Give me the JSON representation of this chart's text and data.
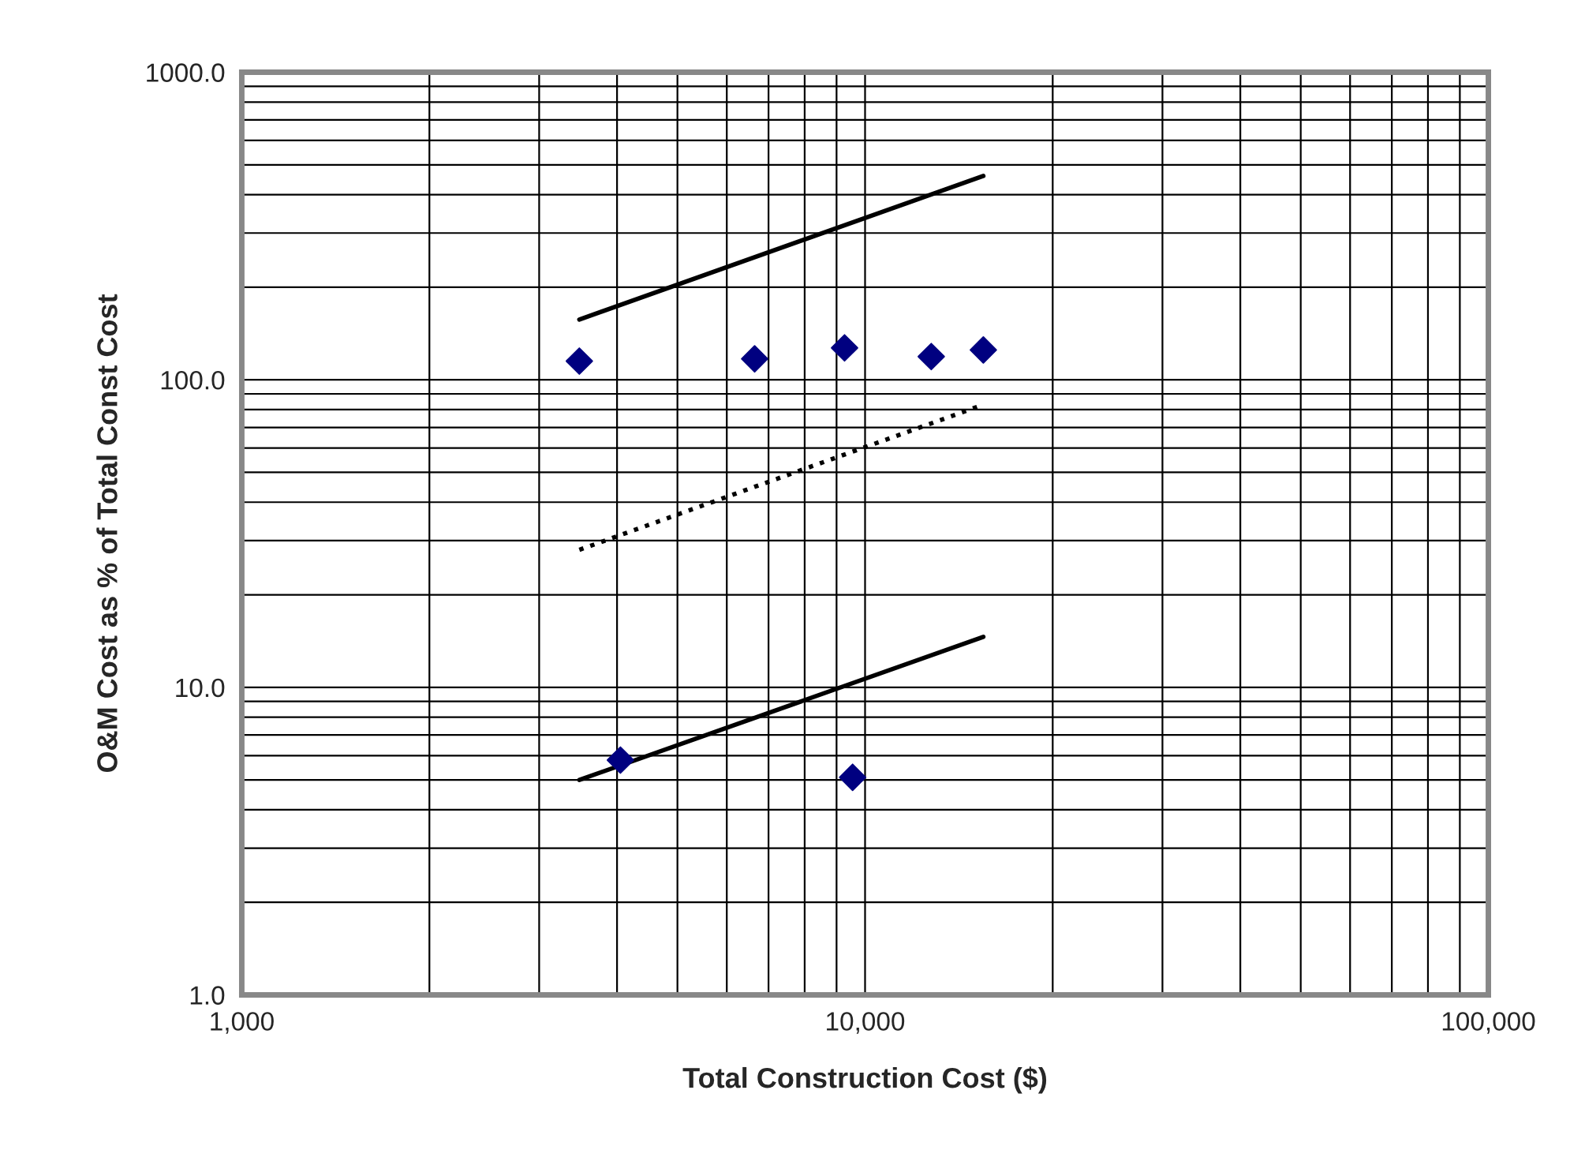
{
  "chart_data": {
    "type": "scatter",
    "xlabel": "Total Construction Cost ($)",
    "ylabel": "O&M Cost as % of Total Const Cost",
    "log": "xy",
    "grid": true,
    "legend": false,
    "xlim": [
      1000,
      100000
    ],
    "xticks": [
      {
        "value": 1000,
        "label": "1,000"
      },
      {
        "value": 10000,
        "label": "10,000"
      },
      {
        "value": 100000,
        "label": "100,000"
      }
    ],
    "ylim": [
      1,
      1000
    ],
    "yticks": [
      {
        "value": 1,
        "label": "1.0"
      },
      {
        "value": 10,
        "label": "10.0"
      },
      {
        "value": 100,
        "label": "100.0"
      },
      {
        "value": 1000,
        "label": "1000.0"
      }
    ],
    "series": [
      {
        "color": "#000080",
        "marker": "diamond",
        "x": [
          3480,
          4050,
          6650,
          9270,
          9550,
          12770,
          15480
        ],
        "values": [
          115,
          5.8,
          117,
          127,
          5.1,
          119,
          125
        ]
      },
      {
        "type": "line",
        "color": "#000000",
        "line_style": "solid",
        "x": [
          3480,
          15480
        ],
        "values": [
          157,
          460
        ]
      },
      {
        "type": "line",
        "color": "#000000",
        "line_style": "dotted",
        "x": [
          3480,
          15480
        ],
        "values": [
          28,
          83
        ]
      },
      {
        "type": "line",
        "color": "#000000",
        "line_style": "solid",
        "x": [
          3480,
          15480
        ],
        "values": [
          5.0,
          14.6
        ]
      }
    ]
  }
}
